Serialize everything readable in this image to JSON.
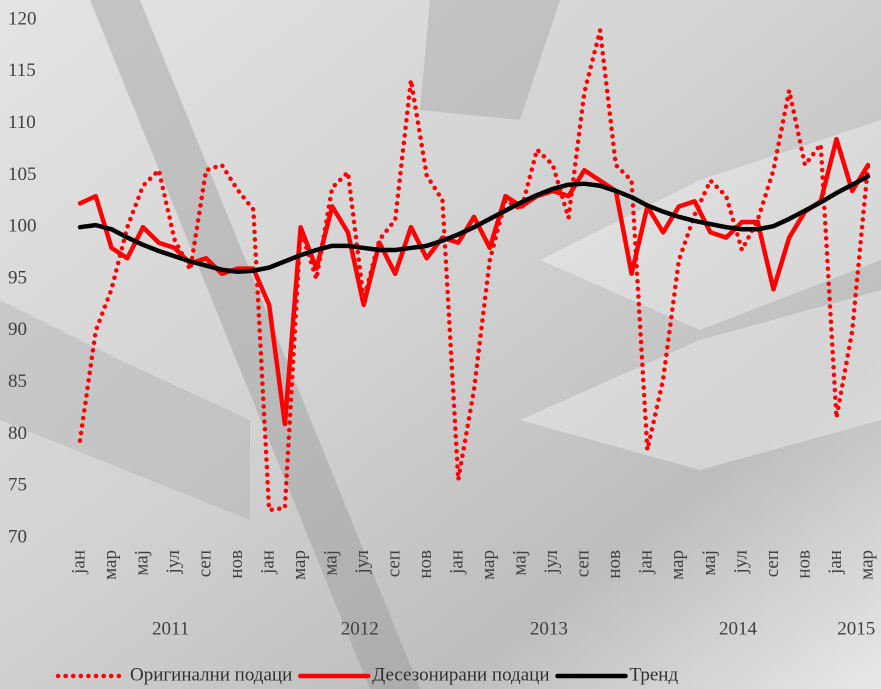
{
  "chart_data": {
    "type": "line",
    "categories": [
      "јан",
      null,
      "мар",
      null,
      "мај",
      null,
      "јул",
      null,
      "сеп",
      null,
      "нов",
      null,
      "јан",
      null,
      "мар",
      null,
      "мај",
      null,
      "јул",
      null,
      "сеп",
      null,
      "нов",
      null,
      "јан",
      null,
      "мар",
      null,
      "мај",
      null,
      "јул",
      null,
      "сеп",
      null,
      "нов",
      null,
      "јан",
      null,
      "мар",
      null,
      "мај",
      null,
      "јул",
      null,
      "сеп",
      null,
      "нов",
      null,
      "јан",
      null,
      "мар"
    ],
    "year_labels": [
      "2011",
      "2012",
      "2013",
      "2014",
      "2015"
    ],
    "series": [
      {
        "name": "Оригинални подаци",
        "color": "#ff0000",
        "style": "dotted",
        "values": [
          79.4,
          90,
          94,
          100,
          104,
          105.5,
          98.8,
          95.9,
          105.5,
          106,
          103.6,
          101.7,
          72.7,
          72.9,
          99.8,
          95,
          103.8,
          105.3,
          93,
          98.8,
          100.7,
          114.2,
          105,
          102.6,
          75.6,
          84.3,
          96.8,
          102.6,
          101.7,
          107.5,
          106,
          100.9,
          113,
          119,
          106,
          104.5,
          78.5,
          85.3,
          96.8,
          101.2,
          104.5,
          103,
          97.8,
          100.7,
          105.5,
          113.2,
          106,
          108,
          81.6,
          90,
          106
        ]
      },
      {
        "name": "Десезонирани подаци",
        "color": "#ff0000",
        "style": "solid",
        "values": [
          102.3,
          103,
          98,
          97,
          100,
          98.5,
          98,
          96.5,
          97,
          95.5,
          96,
          96,
          92.5,
          81,
          100,
          96,
          102,
          99.5,
          92.5,
          98.5,
          95.5,
          100,
          97,
          99,
          98.5,
          101,
          98,
          103,
          102,
          103,
          103.5,
          103,
          105.5,
          104.5,
          103.5,
          95.5,
          102,
          99.5,
          102,
          102.5,
          99.5,
          99,
          100.5,
          100.5,
          94,
          99,
          101.5,
          102.5,
          108.5,
          103.5,
          106
        ]
      },
      {
        "name": "Тренд",
        "color": "#000000",
        "style": "solid",
        "values": [
          100,
          100.2,
          99.8,
          99,
          98.3,
          97.7,
          97.2,
          96.7,
          96.3,
          95.9,
          95.7,
          95.8,
          96.1,
          96.7,
          97.3,
          97.8,
          98.2,
          98.2,
          98,
          97.8,
          97.8,
          98,
          98.2,
          98.7,
          99.3,
          100,
          100.8,
          101.6,
          102.4,
          103.1,
          103.7,
          104.1,
          104.2,
          104,
          103.5,
          102.9,
          102.1,
          101.5,
          101,
          100.6,
          100.3,
          100,
          99.8,
          99.8,
          100.1,
          100.8,
          101.6,
          102.4,
          103.3,
          104.1,
          104.9
        ]
      }
    ],
    "ylim": [
      70,
      120
    ],
    "yticks": [
      70,
      75,
      80,
      85,
      90,
      95,
      100,
      105,
      110,
      115,
      120
    ],
    "grid": false,
    "legend": "bottom"
  }
}
